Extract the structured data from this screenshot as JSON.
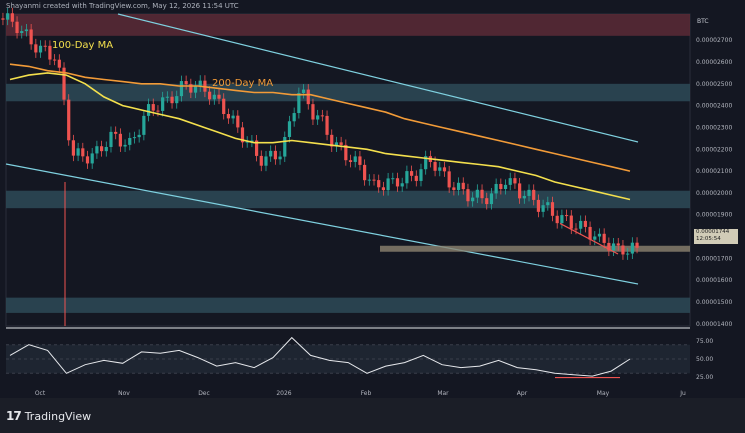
{
  "header": {
    "author_line": "Shayanmi created with TradingView.com, May 12, 2026 11:54 UTC"
  },
  "currency": "BTC",
  "price_tag": {
    "price": "0.00001744",
    "countdown": "12:05:54"
  },
  "ma_labels": {
    "ma100": {
      "text": "100-Day MA",
      "color": "#f4e04d"
    },
    "ma200": {
      "text": "200-Day MA",
      "color": "#f29b38"
    }
  },
  "brand": {
    "text": "TradingView",
    "logo": "tv-logo-icon"
  },
  "colors": {
    "background": "#141722",
    "bull": "#26a69a",
    "bear": "#ef5350",
    "ma100": "#f4e04d",
    "ma200": "#f29b38",
    "channel": "#7fd1e0",
    "resistance_zone": "#5b2a36",
    "support_zone": "#2d4a57",
    "rsi_line": "#e6e8ec",
    "divergence": "#ef5350"
  },
  "chart_data": [
    {
      "type": "candlestick",
      "title": "",
      "x": [
        "2025-09-25",
        "2025-10-01",
        "2025-10-08",
        "2025-10-15",
        "2025-10-22",
        "2025-10-29",
        "2025-11-05",
        "2025-11-12",
        "2025-11-19",
        "2025-11-26",
        "2025-12-03",
        "2025-12-10",
        "2025-12-17",
        "2025-12-24",
        "2025-12-31",
        "2026-01-07",
        "2026-01-14",
        "2026-01-21",
        "2026-01-28",
        "2026-02-04",
        "2026-02-11",
        "2026-02-18",
        "2026-02-25",
        "2026-03-04",
        "2026-03-11",
        "2026-03-18",
        "2026-03-25",
        "2026-04-01",
        "2026-04-08",
        "2026-04-15",
        "2026-04-22",
        "2026-04-29",
        "2026-05-06",
        "2026-05-12"
      ],
      "close": [
        2.76e-05,
        2.66e-05,
        2.62e-05,
        2.1e-05,
        2.16e-05,
        2.26e-05,
        2.21e-05,
        2.4e-05,
        2.43e-05,
        2.51e-05,
        2.48e-05,
        2.38e-05,
        2.25e-05,
        2.14e-05,
        2.19e-05,
        2.5e-05,
        2.32e-05,
        2.18e-05,
        2.12e-05,
        2.01e-05,
        2.05e-05,
        2.08e-05,
        2.17e-05,
        2.04e-05,
        1.99e-05,
        1.98e-05,
        2.07e-05,
        1.98e-05,
        1.92e-05,
        1.86e-05,
        1.83e-05,
        1.77e-05,
        1.73e-05,
        1.744e-05
      ],
      "y_ticks": [
        "0.00002700",
        "0.00002600",
        "0.00002500",
        "0.00002400",
        "0.00002300",
        "0.00002200",
        "0.00002100",
        "0.00002000",
        "0.00001900",
        "0.00001800",
        "0.00001700",
        "0.00001600",
        "0.00001500",
        "0.00001400"
      ],
      "x_ticks": [
        "Oct",
        "Nov",
        "Dec",
        "2026",
        "Feb",
        "Mar",
        "Apr",
        "May",
        "Ju"
      ],
      "series": [
        {
          "name": "100-Day MA",
          "values": [
            2.52e-05,
            2.54e-05,
            2.55e-05,
            2.54e-05,
            2.5e-05,
            2.44e-05,
            2.4e-05,
            2.38e-05,
            2.36e-05,
            2.34e-05,
            2.31e-05,
            2.28e-05,
            2.25e-05,
            2.23e-05,
            2.23e-05,
            2.24e-05,
            2.23e-05,
            2.22e-05,
            2.21e-05,
            2.2e-05,
            2.18e-05,
            2.17e-05,
            2.16e-05,
            2.15e-05,
            2.14e-05,
            2.13e-05,
            2.12e-05,
            2.1e-05,
            2.08e-05,
            2.05e-05,
            2.03e-05,
            2.01e-05,
            1.99e-05,
            1.97e-05
          ]
        },
        {
          "name": "200-Day MA",
          "values": [
            2.59e-05,
            2.58e-05,
            2.56e-05,
            2.55e-05,
            2.53e-05,
            2.52e-05,
            2.51e-05,
            2.5e-05,
            2.5e-05,
            2.49e-05,
            2.49e-05,
            2.48e-05,
            2.47e-05,
            2.46e-05,
            2.46e-05,
            2.45e-05,
            2.45e-05,
            2.43e-05,
            2.41e-05,
            2.39e-05,
            2.37e-05,
            2.34e-05,
            2.32e-05,
            2.3e-05,
            2.28e-05,
            2.26e-05,
            2.24e-05,
            2.22e-05,
            2.2e-05,
            2.18e-05,
            2.16e-05,
            2.14e-05,
            2.12e-05,
            2.1e-05
          ]
        }
      ],
      "zones": [
        {
          "from": 2.72e-05,
          "to": 2.82e-05
        },
        {
          "from": 2.42e-05,
          "to": 2.5e-05
        },
        {
          "from": 1.93e-05,
          "to": 2.01e-05
        },
        {
          "from": 1.45e-05,
          "to": 1.52e-05
        }
      ],
      "support_level": 1.744e-05
    },
    {
      "type": "line",
      "title": "",
      "series": [
        {
          "name": "RSI",
          "values": [
            55,
            70,
            62,
            30,
            42,
            48,
            44,
            60,
            58,
            62,
            52,
            40,
            45,
            38,
            52,
            80,
            55,
            48,
            45,
            30,
            40,
            45,
            55,
            42,
            38,
            40,
            48,
            38,
            35,
            30,
            28,
            26,
            33,
            50
          ]
        }
      ],
      "y_ticks": [
        "75.00",
        "50.00",
        "25.00"
      ],
      "ylim": [
        15,
        85
      ]
    }
  ]
}
